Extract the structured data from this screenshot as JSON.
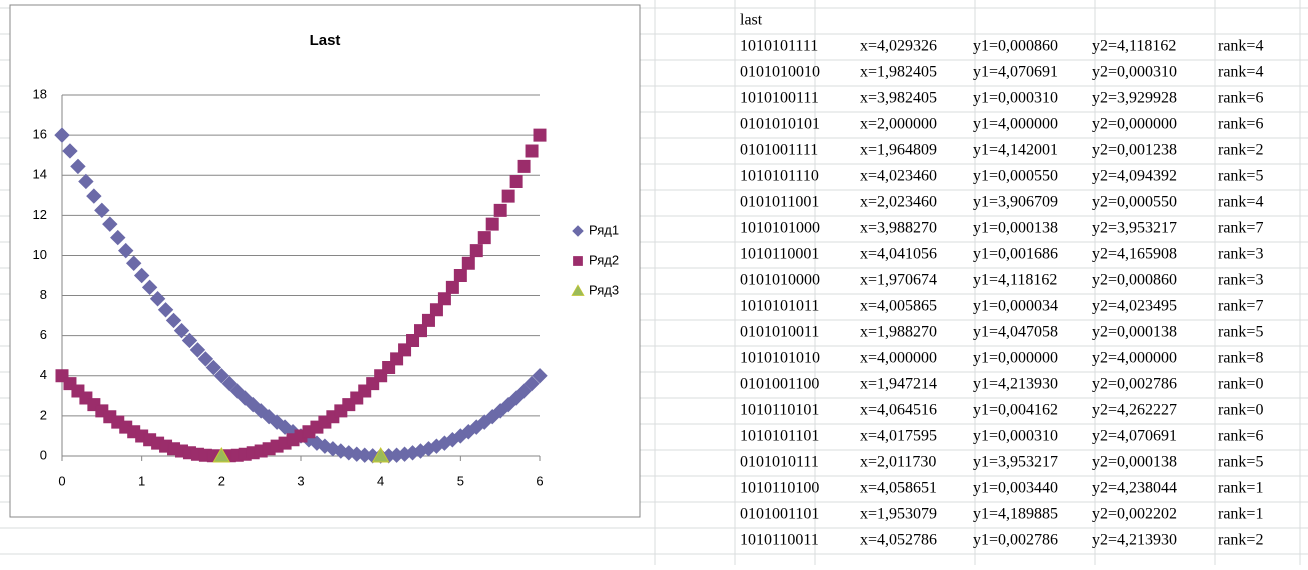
{
  "chart_data": {
    "type": "scatter",
    "title": "Last",
    "xlim": [
      0,
      6
    ],
    "xticks": [
      0,
      1,
      2,
      3,
      4,
      5,
      6
    ],
    "ylim": [
      0,
      18
    ],
    "yticks": [
      0,
      2,
      4,
      6,
      8,
      10,
      12,
      14,
      16,
      18
    ],
    "grid": true,
    "legend": "right",
    "series": [
      {
        "name": "Ряд1",
        "color": "#6b6aa8",
        "marker": "diamond",
        "x": [
          0,
          0.1,
          0.2,
          0.3,
          0.4,
          0.5,
          0.6,
          0.7,
          0.8,
          0.9,
          1,
          1.1,
          1.2,
          1.3,
          1.4,
          1.5,
          1.6,
          1.7,
          1.8,
          1.9,
          2,
          2.1,
          2.2,
          2.3,
          2.4,
          2.5,
          2.6,
          2.7,
          2.8,
          2.9,
          3,
          3.1,
          3.2,
          3.3,
          3.4,
          3.5,
          3.6,
          3.7,
          3.8,
          3.9,
          4,
          4.1,
          4.2,
          4.3,
          4.4,
          4.5,
          4.6,
          4.7,
          4.8,
          4.9,
          5,
          5.1,
          5.2,
          5.3,
          5.4,
          5.5,
          5.6,
          5.7,
          5.8,
          5.9,
          6
        ],
        "values": [
          16,
          15.21,
          14.44,
          13.69,
          12.96,
          12.25,
          11.56,
          10.89,
          10.24,
          9.61,
          9,
          8.41,
          7.84,
          7.29,
          6.76,
          6.25,
          5.76,
          5.29,
          4.84,
          4.41,
          4,
          3.61,
          3.24,
          2.89,
          2.56,
          2.25,
          1.96,
          1.69,
          1.44,
          1.21,
          1,
          0.81,
          0.64,
          0.49,
          0.36,
          0.25,
          0.16,
          0.09,
          0.04,
          0.01,
          0,
          0.01,
          0.04,
          0.09,
          0.16,
          0.25,
          0.36,
          0.49,
          0.64,
          0.81,
          1,
          1.21,
          1.44,
          1.69,
          1.96,
          2.25,
          2.56,
          2.89,
          3.24,
          3.61,
          4
        ]
      },
      {
        "name": "Ряд2",
        "color": "#9b2d6b",
        "marker": "square",
        "x": [
          0,
          0.1,
          0.2,
          0.3,
          0.4,
          0.5,
          0.6,
          0.7,
          0.8,
          0.9,
          1,
          1.1,
          1.2,
          1.3,
          1.4,
          1.5,
          1.6,
          1.7,
          1.8,
          1.9,
          2,
          2.1,
          2.2,
          2.3,
          2.4,
          2.5,
          2.6,
          2.7,
          2.8,
          2.9,
          3,
          3.1,
          3.2,
          3.3,
          3.4,
          3.5,
          3.6,
          3.7,
          3.8,
          3.9,
          4,
          4.1,
          4.2,
          4.3,
          4.4,
          4.5,
          4.6,
          4.7,
          4.8,
          4.9,
          5,
          5.1,
          5.2,
          5.3,
          5.4,
          5.5,
          5.6,
          5.7,
          5.8,
          5.9,
          6
        ],
        "values": [
          4,
          3.61,
          3.24,
          2.89,
          2.56,
          2.25,
          1.96,
          1.69,
          1.44,
          1.21,
          1,
          0.81,
          0.64,
          0.49,
          0.36,
          0.25,
          0.16,
          0.09,
          0.04,
          0.01,
          0,
          0.01,
          0.04,
          0.09,
          0.16,
          0.25,
          0.36,
          0.49,
          0.64,
          0.81,
          1,
          1.21,
          1.44,
          1.69,
          1.96,
          2.25,
          2.56,
          2.89,
          3.24,
          3.61,
          4,
          4.41,
          4.84,
          5.29,
          5.76,
          6.25,
          6.76,
          7.29,
          7.84,
          8.41,
          9,
          9.61,
          10.24,
          10.89,
          11.56,
          12.25,
          12.96,
          13.69,
          14.44,
          15.21,
          16
        ]
      },
      {
        "name": "Ряд3",
        "color": "#9bbb59",
        "marker": "triangle",
        "x": [
          2,
          4
        ],
        "values": [
          0,
          0
        ]
      }
    ]
  },
  "spreadsheet": {
    "title": "last",
    "rows": [
      [
        "1010101111",
        "x=4,029326",
        "y1=0,000860",
        "y2=4,118162",
        "rank=4"
      ],
      [
        "0101010010",
        "x=1,982405",
        "y1=4,070691",
        "y2=0,000310",
        "rank=4"
      ],
      [
        "1010100111",
        "x=3,982405",
        "y1=0,000310",
        "y2=3,929928",
        "rank=6"
      ],
      [
        "0101010101",
        "x=2,000000",
        "y1=4,000000",
        "y2=0,000000",
        "rank=6"
      ],
      [
        "0101001111",
        "x=1,964809",
        "y1=4,142001",
        "y2=0,001238",
        "rank=2"
      ],
      [
        "1010101110",
        "x=4,023460",
        "y1=0,000550",
        "y2=4,094392",
        "rank=5"
      ],
      [
        "0101011001",
        "x=2,023460",
        "y1=3,906709",
        "y2=0,000550",
        "rank=4"
      ],
      [
        "1010101000",
        "x=3,988270",
        "y1=0,000138",
        "y2=3,953217",
        "rank=7"
      ],
      [
        "1010110001",
        "x=4,041056",
        "y1=0,001686",
        "y2=4,165908",
        "rank=3"
      ],
      [
        "0101010000",
        "x=1,970674",
        "y1=4,118162",
        "y2=0,000860",
        "rank=3"
      ],
      [
        "1010101011",
        "x=4,005865",
        "y1=0,000034",
        "y2=4,023495",
        "rank=7"
      ],
      [
        "0101010011",
        "x=1,988270",
        "y1=4,047058",
        "y2=0,000138",
        "rank=5"
      ],
      [
        "1010101010",
        "x=4,000000",
        "y1=0,000000",
        "y2=4,000000",
        "rank=8"
      ],
      [
        "0101001100",
        "x=1,947214",
        "y1=4,213930",
        "y2=0,002786",
        "rank=0"
      ],
      [
        "1010110101",
        "x=4,064516",
        "y1=0,004162",
        "y2=4,262227",
        "rank=0"
      ],
      [
        "1010101101",
        "x=4,017595",
        "y1=0,000310",
        "y2=4,070691",
        "rank=6"
      ],
      [
        "0101010111",
        "x=2,011730",
        "y1=3,953217",
        "y2=0,000138",
        "rank=5"
      ],
      [
        "1010110100",
        "x=4,058651",
        "y1=0,003440",
        "y2=4,238044",
        "rank=1"
      ],
      [
        "0101001101",
        "x=1,953079",
        "y1=4,189885",
        "y2=0,002202",
        "rank=1"
      ],
      [
        "1010110011",
        "x=4,052786",
        "y1=0,002786",
        "y2=4,213930",
        "rank=2"
      ]
    ]
  }
}
